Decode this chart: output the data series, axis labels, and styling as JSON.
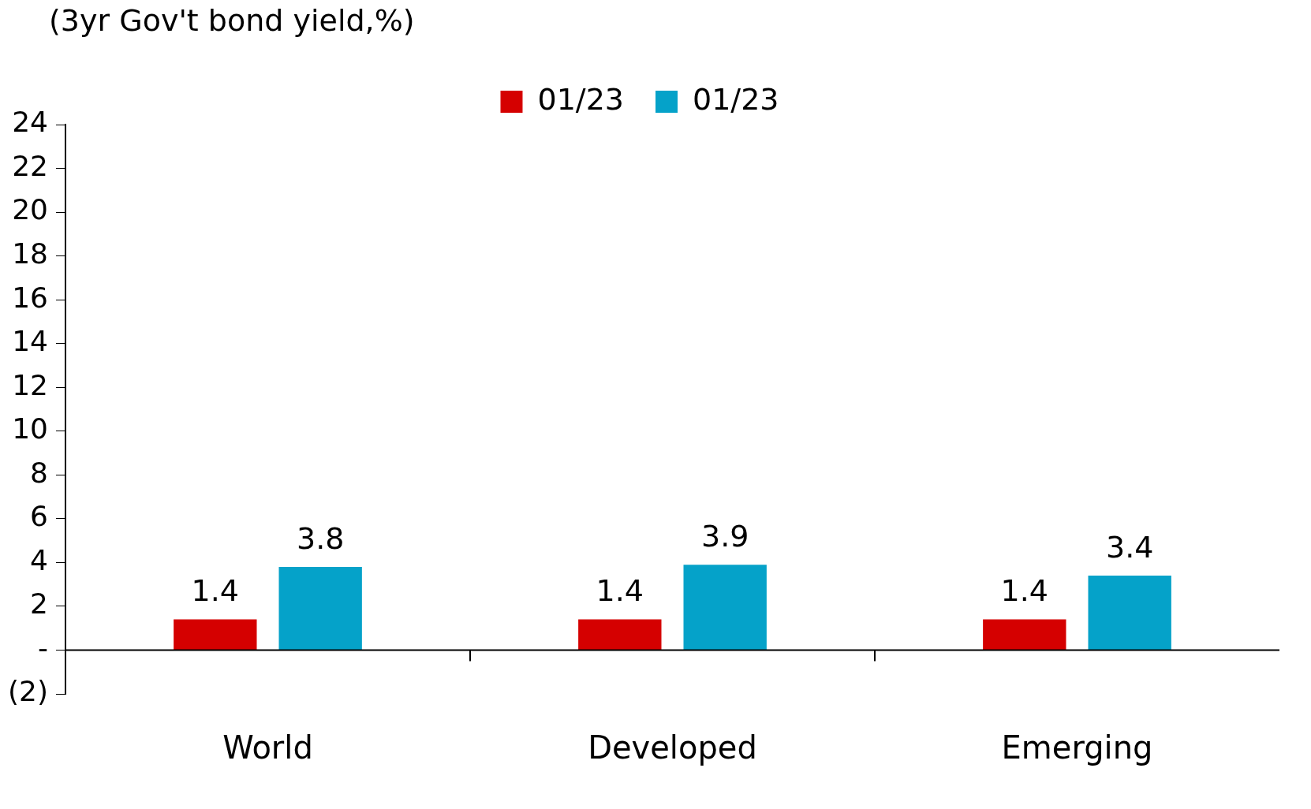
{
  "chart_data": {
    "type": "bar",
    "ylabel": "(3yr Gov't bond yield,%)",
    "categories": [
      "World",
      "Developed",
      "Emerging"
    ],
    "series": [
      {
        "name": "01/23",
        "color": "#d50000",
        "values": [
          1.4,
          1.4,
          1.4
        ]
      },
      {
        "name": "01/23",
        "color": "#05a2c9",
        "values": [
          3.8,
          3.9,
          3.4
        ]
      }
    ],
    "ylim": [
      -2,
      24
    ],
    "yticks": [
      {
        "value": -2,
        "label": "(2)"
      },
      {
        "value": 0,
        "label": "-"
      },
      2,
      4,
      6,
      8,
      10,
      12,
      14,
      16,
      18,
      20,
      22,
      24
    ],
    "data_labels": true,
    "legend": "top",
    "grid": false
  }
}
